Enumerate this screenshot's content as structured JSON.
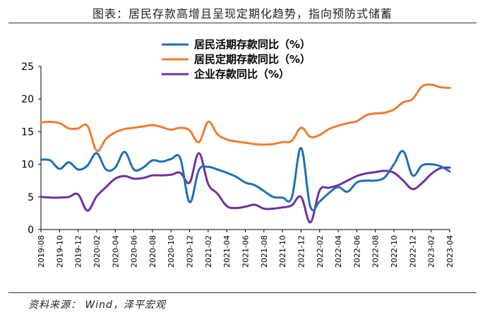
{
  "header": {
    "title": "图表：居民存款高增且呈现定期化趋势，指向预防式储蓄"
  },
  "footer": {
    "source": "资料来源： Wind，泽平宏观"
  },
  "chart_data": {
    "type": "line",
    "title": "图表：居民存款高增且呈现定期化趋势，指向预防式储蓄",
    "xlabel": "",
    "ylabel": "",
    "ylim": [
      0,
      25
    ],
    "yticks": [
      0,
      5,
      10,
      15,
      20,
      25
    ],
    "grid": false,
    "legend_position": "top-center",
    "x": [
      "2019-08",
      "2019-09",
      "2019-10",
      "2019-11",
      "2019-12",
      "2020-01",
      "2020-02",
      "2020-03",
      "2020-04",
      "2020-05",
      "2020-06",
      "2020-07",
      "2020-08",
      "2020-09",
      "2020-10",
      "2020-11",
      "2020-12",
      "2021-01",
      "2021-02",
      "2021-03",
      "2021-04",
      "2021-05",
      "2021-06",
      "2021-07",
      "2021-08",
      "2021-09",
      "2021-10",
      "2021-11",
      "2021-12",
      "2022-01",
      "2022-02",
      "2022-03",
      "2022-04",
      "2022-05",
      "2022-06",
      "2022-07",
      "2022-08",
      "2022-09",
      "2022-10",
      "2022-11",
      "2022-12",
      "2023-01",
      "2023-02",
      "2023-03",
      "2023-04"
    ],
    "xtick_labels": [
      "2019-08",
      "2019-10",
      "2019-12",
      "2020-02",
      "2020-04",
      "2020-06",
      "2020-08",
      "2020-10",
      "2020-12",
      "2021-02",
      "2021-04",
      "2021-06",
      "2021-08",
      "2021-10",
      "2021-12",
      "2022-02",
      "2022-04",
      "2022-06",
      "2022-08",
      "2022-10",
      "2022-12",
      "2023-02",
      "2023-04"
    ],
    "series": [
      {
        "name": "居民活期存款同比（%）",
        "color": "#1f6fb5",
        "values": [
          10.7,
          10.6,
          9.3,
          10.3,
          9.2,
          9.8,
          11.7,
          9.2,
          9.5,
          11.9,
          9.2,
          9.5,
          10.6,
          10.4,
          10.8,
          10.9,
          4.2,
          9.1,
          9.6,
          9.2,
          8.7,
          8.1,
          7.2,
          6.8,
          5.9,
          5.0,
          4.9,
          4.9,
          12.5,
          3.5,
          4.3,
          5.6,
          6.5,
          5.8,
          7.2,
          7.5,
          7.5,
          8.0,
          10.0,
          12.0,
          8.3,
          9.8,
          10.0,
          9.7,
          8.9
        ]
      },
      {
        "name": "居民定期存款同比（%）",
        "color": "#ed7d31",
        "values": [
          16.4,
          16.5,
          16.3,
          15.5,
          15.5,
          15.9,
          12.1,
          13.9,
          14.9,
          15.4,
          15.6,
          15.8,
          16.0,
          15.7,
          15.3,
          15.6,
          15.2,
          13.4,
          16.5,
          14.6,
          13.8,
          13.5,
          13.3,
          13.1,
          13.0,
          13.1,
          13.4,
          13.6,
          15.6,
          14.2,
          14.5,
          15.4,
          15.9,
          16.3,
          16.6,
          17.5,
          17.8,
          17.9,
          18.4,
          19.5,
          20.0,
          21.9,
          22.2,
          21.8,
          21.7
        ]
      },
      {
        "name": "企业存款同比（%）",
        "color": "#7030a0",
        "values": [
          5.0,
          4.9,
          4.9,
          5.0,
          5.4,
          2.9,
          5.1,
          6.5,
          7.8,
          8.2,
          7.8,
          7.9,
          8.3,
          8.3,
          8.4,
          8.7,
          7.2,
          11.7,
          7.0,
          5.5,
          3.6,
          3.3,
          3.5,
          3.8,
          3.2,
          3.2,
          3.4,
          3.7,
          5.0,
          1.1,
          6.0,
          6.4,
          6.8,
          7.5,
          8.2,
          8.6,
          8.8,
          9.0,
          8.7,
          7.5,
          6.2,
          7.1,
          8.5,
          9.4,
          9.5
        ]
      }
    ]
  }
}
